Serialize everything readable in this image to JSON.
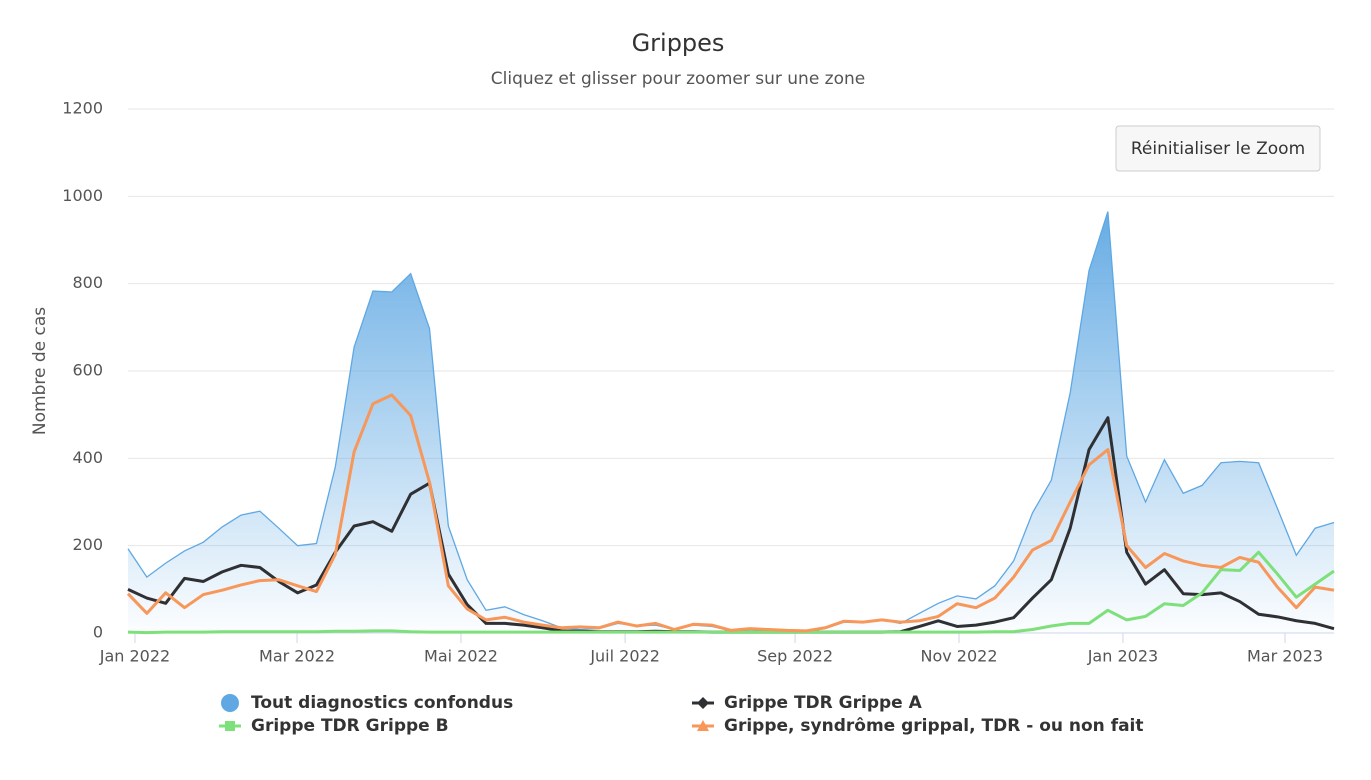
{
  "chart_data": {
    "type": "line",
    "title": "Grippes",
    "subtitle": "Cliquez et glisser pour zoomer sur une zone",
    "reset_button": "Réinitialiser le Zoom",
    "y_label": "Nombre de cas",
    "ylim": [
      0,
      1200
    ],
    "yticks": [
      0,
      200,
      400,
      600,
      800,
      1000,
      1200
    ],
    "grid": true,
    "xlim": [
      0,
      64
    ],
    "xticks": [
      {
        "value": 0.37,
        "label": "Jan 2022"
      },
      {
        "value": 8.97,
        "label": "Mar 2022"
      },
      {
        "value": 17.67,
        "label": "Mai 2022"
      },
      {
        "value": 26.38,
        "label": "Juil 2022"
      },
      {
        "value": 35.4,
        "label": "Sep 2022"
      },
      {
        "value": 44.1,
        "label": "Nov 2022"
      },
      {
        "value": 52.8,
        "label": "Jan 2023"
      },
      {
        "value": 61.4,
        "label": "Mar 2023"
      }
    ],
    "series": [
      {
        "name": "Tout diagnostics confondus",
        "type": "area",
        "marker": "circle",
        "color": "#5fa8e3",
        "values": [
          193,
          128,
          160,
          188,
          208,
          243,
          270,
          279,
          240,
          200,
          205,
          380,
          655,
          783,
          781,
          823,
          697,
          245,
          122,
          52,
          60,
          42,
          28,
          12,
          8,
          10,
          22,
          16,
          18,
          8,
          18,
          15,
          5,
          8,
          6,
          5,
          4,
          10,
          25,
          24,
          30,
          22,
          45,
          68,
          85,
          78,
          108,
          165,
          275,
          350,
          550,
          830,
          965,
          405,
          300,
          397,
          320,
          338,
          390,
          393,
          390,
          285,
          178,
          240,
          253
        ]
      },
      {
        "name": "Grippe TDR Grippe A",
        "type": "line",
        "marker": "diamond",
        "color": "#2f3033",
        "values": [
          100,
          80,
          68,
          125,
          118,
          140,
          155,
          150,
          118,
          92,
          110,
          185,
          245,
          255,
          233,
          318,
          343,
          135,
          65,
          22,
          22,
          18,
          12,
          5,
          4,
          3,
          3,
          3,
          4,
          3,
          3,
          2,
          2,
          2,
          2,
          2,
          2,
          2,
          2,
          2,
          2,
          3,
          15,
          28,
          15,
          18,
          25,
          35,
          80,
          122,
          240,
          420,
          493,
          185,
          112,
          145,
          90,
          88,
          92,
          72,
          43,
          37,
          28,
          22,
          10
        ]
      },
      {
        "name": "Grippe TDR Grippe B",
        "type": "line",
        "marker": "square",
        "color": "#7ee07a",
        "values": [
          2,
          1,
          2,
          2,
          2,
          3,
          3,
          3,
          3,
          3,
          3,
          4,
          4,
          5,
          5,
          3,
          2,
          2,
          2,
          2,
          2,
          2,
          2,
          2,
          2,
          2,
          2,
          2,
          2,
          2,
          2,
          2,
          2,
          2,
          2,
          2,
          2,
          2,
          2,
          2,
          2,
          2,
          2,
          2,
          2,
          2,
          3,
          3,
          8,
          16,
          22,
          22,
          52,
          30,
          38,
          67,
          63,
          92,
          145,
          143,
          185,
          135,
          82,
          112,
          142
        ]
      },
      {
        "name": "Grippe, syndrôme grippal, TDR - ou non fait",
        "type": "line",
        "marker": "triangle",
        "color": "#f7975a",
        "values": [
          90,
          45,
          92,
          58,
          88,
          98,
          110,
          120,
          122,
          108,
          95,
          180,
          415,
          525,
          545,
          498,
          345,
          108,
          55,
          30,
          36,
          25,
          18,
          12,
          14,
          12,
          25,
          16,
          22,
          8,
          20,
          18,
          6,
          10,
          8,
          6,
          5,
          12,
          27,
          25,
          30,
          25,
          28,
          38,
          67,
          58,
          80,
          128,
          190,
          212,
          300,
          385,
          420,
          200,
          150,
          182,
          165,
          155,
          150,
          173,
          162,
          105,
          58,
          105,
          98
        ]
      }
    ]
  }
}
